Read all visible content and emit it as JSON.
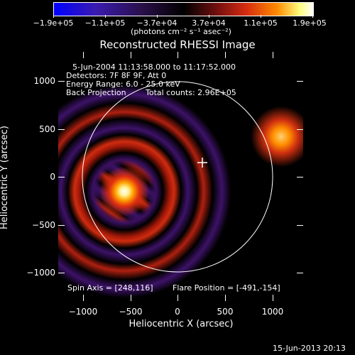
{
  "colorbar": {
    "tick_labels": [
      "−1.9e+05",
      "−1.1e+05",
      "−3.7e+04",
      "3.7e+04",
      "1.1e+05",
      "1.9e+05"
    ],
    "unit_label": "(photons cm⁻² s⁻¹ asec⁻²)"
  },
  "title": "Reconstructed RHESSI Image",
  "info": {
    "time_range": "5-Jun-2004 11:13:58.000 to 11:17:52.000",
    "detectors": "Detectors: 7F 8F 9F, Att 0",
    "energy": "Energy Range: 6.0 - 25.0 keV",
    "method": "Back Projection",
    "counts": "Total counts: 2.96E+05",
    "spin_axis": "Spin Axis = [248,116]",
    "flare_position": "Flare Position = [-491,-154]"
  },
  "axes": {
    "xlabel": "Heliocentric X (arcsec)",
    "ylabel": "Heliocentric Y (arcsec)",
    "x_ticks": [
      "−1000",
      "−500",
      "0",
      "500",
      "1000"
    ],
    "y_ticks": [
      "1000",
      "500",
      "0",
      "−500",
      "−1000"
    ]
  },
  "footer": {
    "timestamp": "15-Jun-2013 20:13"
  },
  "colors": {
    "background": "#000000",
    "colormap": [
      "#0000ff",
      "#3a1bb0",
      "#2a0f4a",
      "#000000",
      "#6a0e0e",
      "#d42a10",
      "#ff8a00",
      "#ffff80",
      "#ffffff"
    ]
  }
}
